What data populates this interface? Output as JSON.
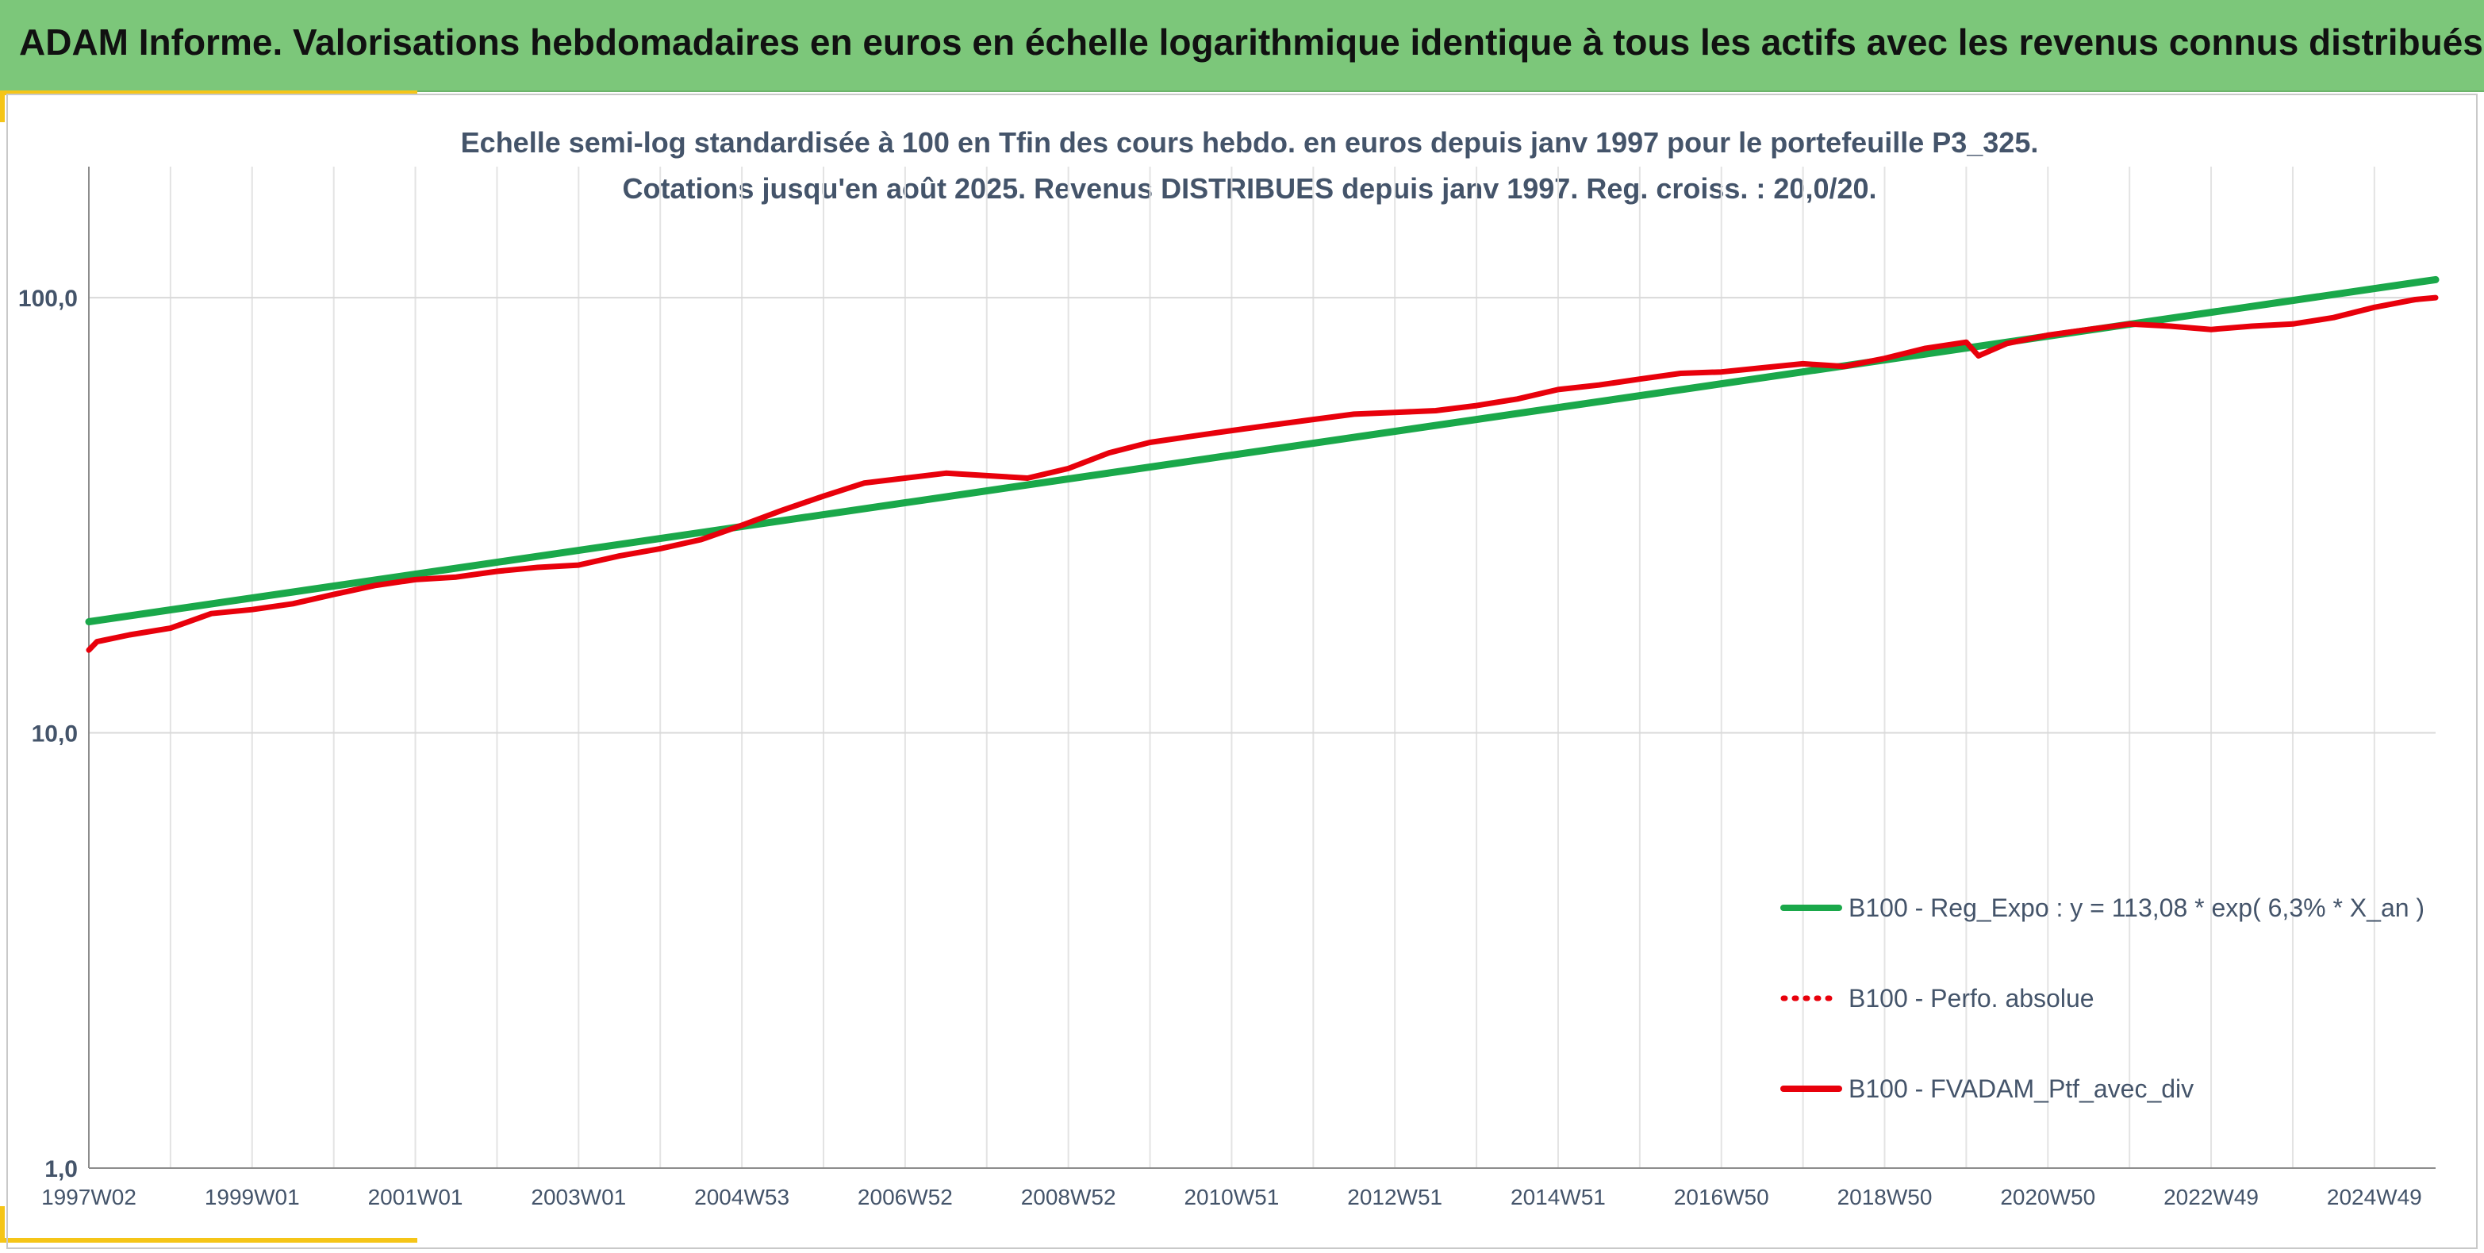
{
  "header": {
    "title": "ADAM Informe. Valorisations hebdomadaires en euros en échelle logarithmique identique à tous les actifs avec les revenus connus distribués"
  },
  "colors": {
    "banner": "#7cc77a",
    "corner_accent": "#f5c518",
    "regression": "#1aa84a",
    "portfolio": "#e8000b",
    "perf_absolue": "#e8000b"
  },
  "chart_data": {
    "type": "line",
    "title": "Echelle semi-log standardisée à 100 en Tfin des cours hebdo. en euros depuis janv 1997 pour le portefeuille P3_325.",
    "subtitle": "Cotations jusqu'en août 2025. Revenus DISTRIBUES depuis janv 1997. Reg. croiss. : 20,0/20.",
    "xlabel": "",
    "ylabel": "",
    "y_scale": "log",
    "ylim": [
      1,
      200
    ],
    "xlim": [
      1997.0,
      2025.75
    ],
    "y_ticks": [
      1,
      10,
      100
    ],
    "y_tick_labels": [
      "1,0",
      "10,0",
      "100,0"
    ],
    "x_ticks": [
      1997.0,
      1999.0,
      2001.0,
      2003.0,
      2005.0,
      2007.0,
      2009.0,
      2011.0,
      2013.0,
      2015.0,
      2017.0,
      2019.0,
      2021.0,
      2023.0,
      2025.0
    ],
    "x_tick_labels": [
      "1997W02",
      "1999W01",
      "2001W01",
      "2003W01",
      "2004W53",
      "2006W52",
      "2008W52",
      "2010W51",
      "2012W51",
      "2014W51",
      "2016W50",
      "2018W50",
      "2020W50",
      "2022W49",
      "2024W49"
    ],
    "grid": {
      "vertical": true,
      "horizontal": true
    },
    "legend": "right",
    "series": [
      {
        "name": "B100 - Reg_Expo : y = 113,08 * exp( 6,3% *  X_an )",
        "style": "solid",
        "color": "#1aa84a",
        "x": [
          1997.0,
          2025.75
        ],
        "y": [
          18.0,
          110.0
        ]
      },
      {
        "name": "B100 - Perfo. absolue",
        "style": "dotted",
        "color": "#e8000b",
        "x": [],
        "y": []
      },
      {
        "name": "B100 - FVADAM_Ptf_avec_div",
        "style": "solid",
        "color": "#e8000b",
        "x": [
          1997.0,
          1997.1,
          1997.5,
          1998.0,
          1998.5,
          1999.0,
          1999.5,
          2000.0,
          2000.5,
          2001.0,
          2001.5,
          2002.0,
          2002.5,
          2003.0,
          2003.5,
          2004.0,
          2004.5,
          2005.0,
          2005.5,
          2006.0,
          2006.5,
          2007.0,
          2007.5,
          2008.0,
          2008.5,
          2009.0,
          2009.5,
          2010.0,
          2010.5,
          2011.0,
          2011.5,
          2012.0,
          2012.5,
          2013.0,
          2013.5,
          2014.0,
          2014.5,
          2015.0,
          2015.5,
          2016.0,
          2016.5,
          2017.0,
          2017.5,
          2018.0,
          2018.5,
          2019.0,
          2019.5,
          2020.0,
          2020.15,
          2020.5,
          2021.0,
          2021.5,
          2022.0,
          2022.5,
          2023.0,
          2023.5,
          2024.0,
          2024.5,
          2025.0,
          2025.5,
          2025.75
        ],
        "y": [
          15.5,
          16.2,
          16.8,
          17.4,
          18.8,
          19.2,
          19.8,
          20.8,
          21.8,
          22.5,
          22.8,
          23.5,
          24.0,
          24.3,
          25.5,
          26.5,
          27.8,
          30.0,
          32.5,
          35.0,
          37.5,
          38.5,
          39.5,
          39.0,
          38.5,
          40.5,
          44.0,
          46.5,
          48.0,
          49.5,
          51.0,
          52.5,
          54.0,
          54.5,
          55.0,
          56.5,
          58.5,
          61.5,
          63.0,
          65.0,
          67.0,
          67.5,
          69.0,
          70.5,
          69.5,
          72.5,
          76.5,
          79.0,
          73.5,
          78.5,
          82.0,
          84.5,
          87.0,
          86.0,
          84.5,
          86.0,
          87.0,
          90.0,
          95.0,
          99.0,
          100.0
        ]
      }
    ]
  }
}
